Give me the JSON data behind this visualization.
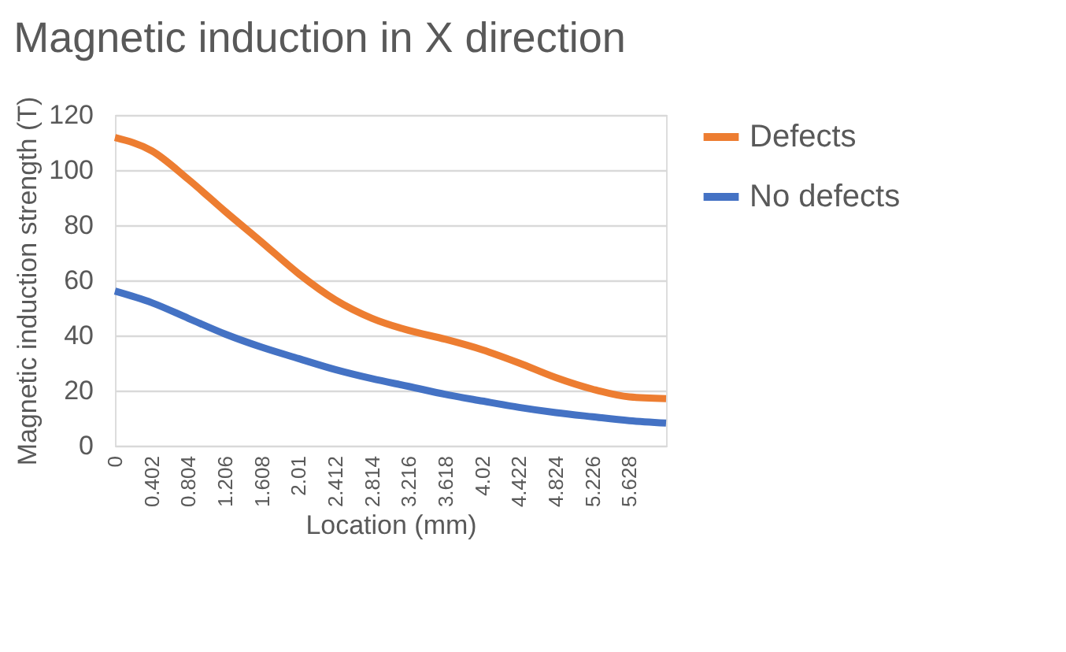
{
  "chart_data": {
    "type": "line",
    "title": "Magnetic induction in X direction",
    "xlabel": "Location (mm)",
    "ylabel": "Magnetic induction strength (T)",
    "x": [
      0,
      0.402,
      0.804,
      1.206,
      1.608,
      2.01,
      2.412,
      2.814,
      3.216,
      3.618,
      4.02,
      4.422,
      4.824,
      5.226,
      5.628,
      6.03
    ],
    "series": [
      {
        "name": "Defects",
        "color": "#ed7d31",
        "values": [
          111.8,
          107,
          96.6,
          85,
          73.8,
          62.4,
          52.9,
          46.2,
          41.8,
          38.6,
          34.8,
          30,
          24.7,
          20.5,
          17.7,
          17.1
        ]
      },
      {
        "name": "No defects",
        "color": "#4472c4",
        "values": [
          56.1,
          51.9,
          46.2,
          40.5,
          35.7,
          31.6,
          27.6,
          24.3,
          21.5,
          18.6,
          16.2,
          13.9,
          12,
          10.5,
          9.1,
          8.2
        ]
      }
    ],
    "xlim": [
      0,
      6.03
    ],
    "xticks": [
      0,
      0.402,
      0.804,
      1.206,
      1.608,
      2.01,
      2.412,
      2.814,
      3.216,
      3.618,
      4.02,
      4.422,
      4.824,
      5.226,
      5.628
    ],
    "ylim": [
      0,
      120
    ],
    "yticks": [
      0,
      20,
      40,
      60,
      80,
      100,
      120
    ],
    "grid": "y",
    "legend": "right",
    "marker": "none",
    "line_style": "solid"
  }
}
